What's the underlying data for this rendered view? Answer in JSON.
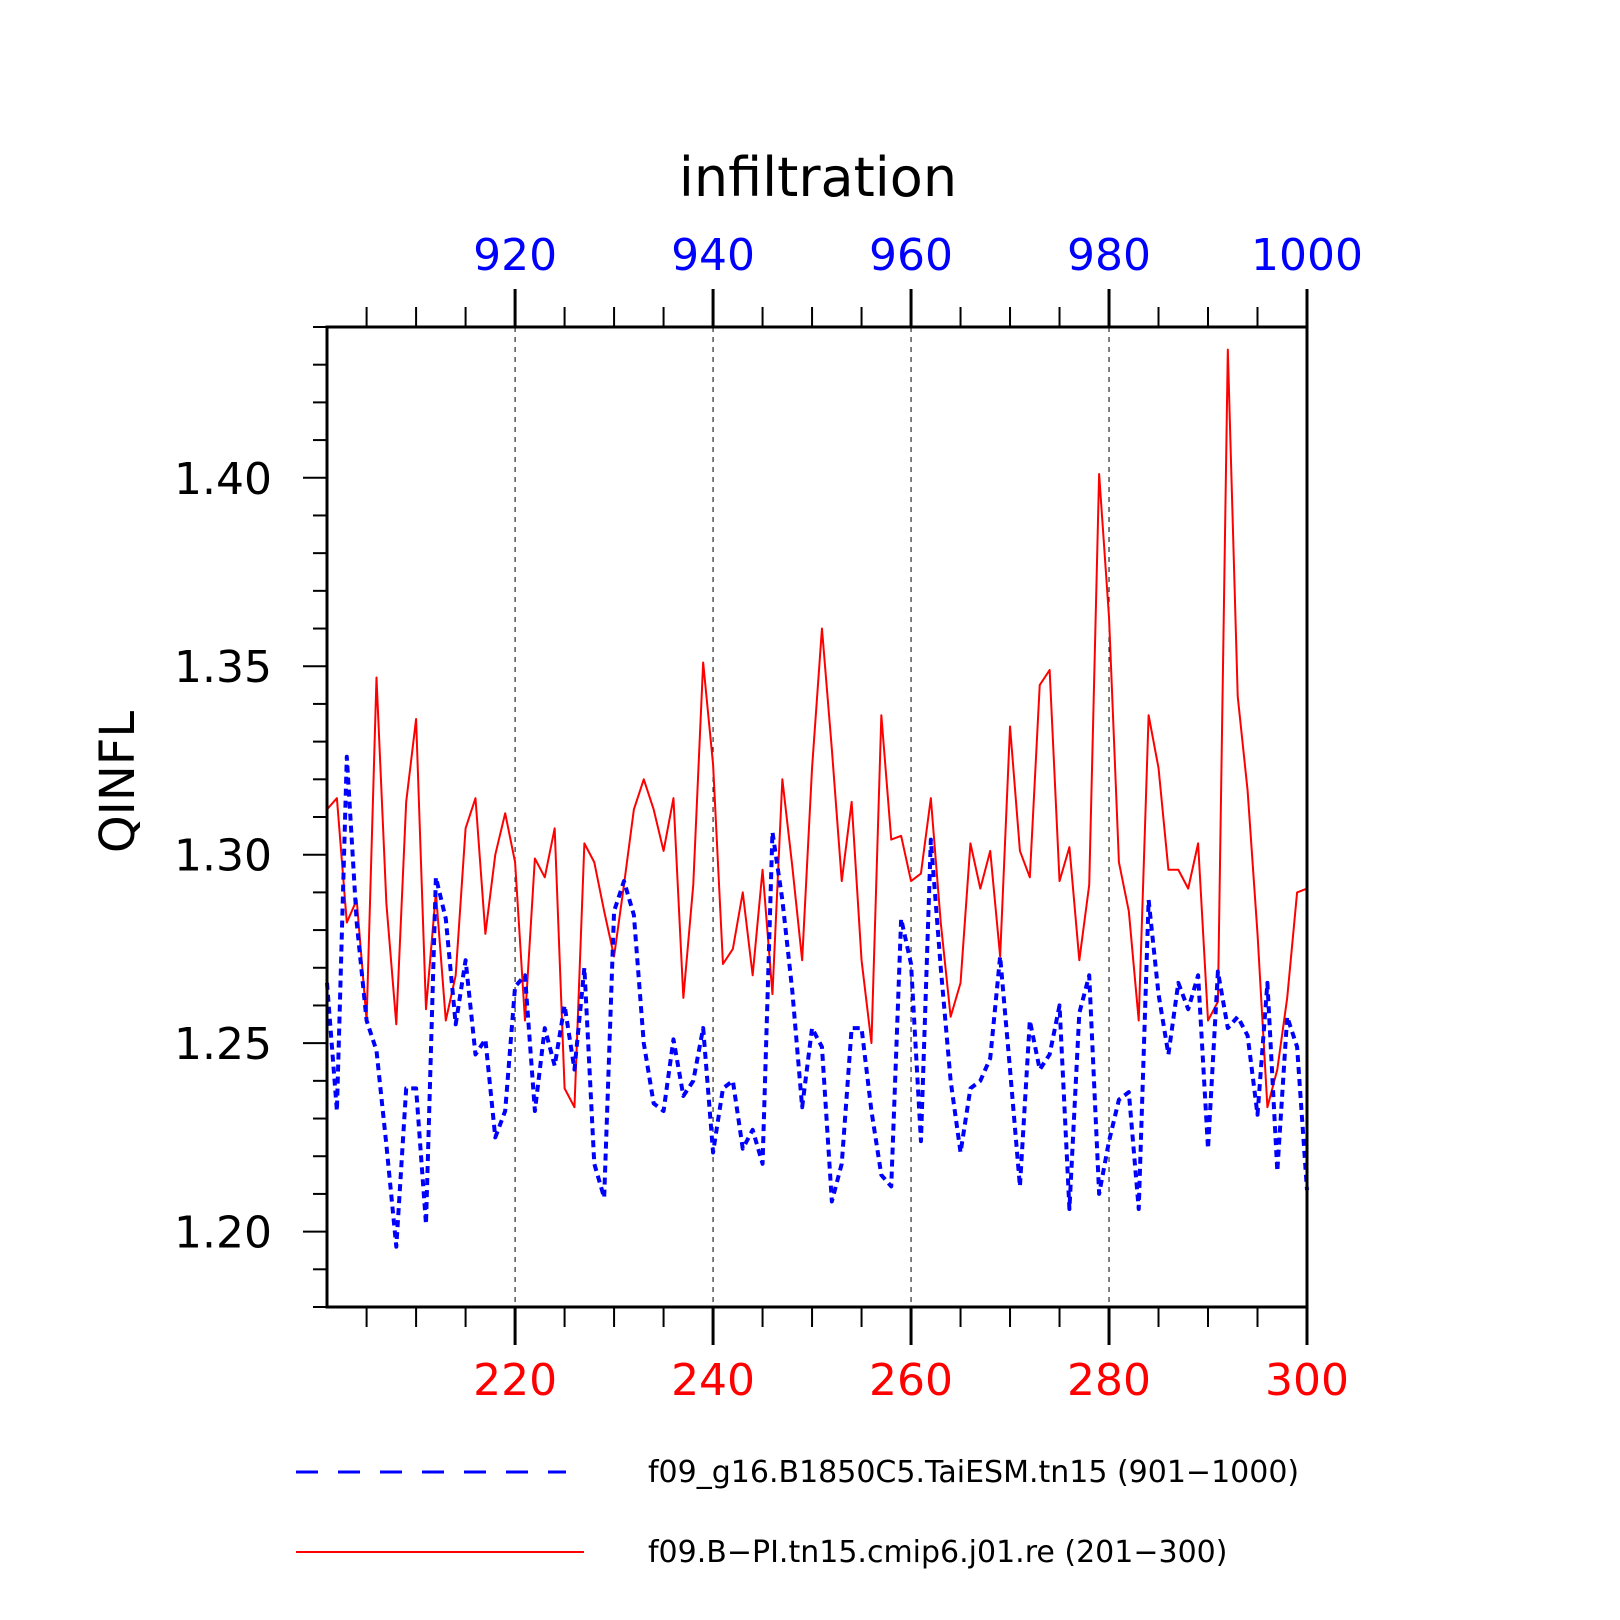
{
  "chart_data": {
    "type": "line",
    "title": "infiltration",
    "ylabel": "QINFL",
    "ylim": [
      1.18,
      1.44
    ],
    "yticks": [
      "1.20",
      "1.25",
      "1.30",
      "1.35",
      "1.40"
    ],
    "grid": "vertical dashed lines at major ticks",
    "legend_placement": "bottom",
    "x_bottom": {
      "range": [
        201,
        300
      ],
      "ticks": [
        "220",
        "240",
        "260",
        "280",
        "300"
      ],
      "color": "#ff0000"
    },
    "x_top": {
      "range": [
        901,
        1000
      ],
      "ticks": [
        "920",
        "940",
        "960",
        "980",
        "1000"
      ],
      "color": "#0000ff"
    },
    "series": [
      {
        "name": "f09_g16.B1850C5.TaiESM.tn15 (901−1000)",
        "color": "#0000ff",
        "style": "dashed",
        "x_start": 901,
        "values": [
          1.266,
          1.232,
          1.326,
          1.282,
          1.256,
          1.248,
          1.223,
          1.196,
          1.238,
          1.238,
          1.202,
          1.294,
          1.283,
          1.255,
          1.272,
          1.247,
          1.251,
          1.225,
          1.232,
          1.265,
          1.268,
          1.232,
          1.254,
          1.244,
          1.26,
          1.243,
          1.27,
          1.218,
          1.209,
          1.285,
          1.293,
          1.284,
          1.25,
          1.234,
          1.232,
          1.251,
          1.236,
          1.24,
          1.254,
          1.221,
          1.238,
          1.24,
          1.222,
          1.227,
          1.218,
          1.306,
          1.288,
          1.264,
          1.233,
          1.254,
          1.249,
          1.208,
          1.218,
          1.254,
          1.254,
          1.232,
          1.215,
          1.212,
          1.283,
          1.271,
          1.224,
          1.304,
          1.27,
          1.24,
          1.221,
          1.238,
          1.24,
          1.246,
          1.273,
          1.243,
          1.212,
          1.256,
          1.243,
          1.247,
          1.26,
          1.206,
          1.258,
          1.268,
          1.21,
          1.224,
          1.235,
          1.237,
          1.206,
          1.288,
          1.263,
          1.247,
          1.266,
          1.259,
          1.268,
          1.222,
          1.269,
          1.254,
          1.257,
          1.252,
          1.231,
          1.266,
          1.216,
          1.257,
          1.249,
          1.211
        ]
      },
      {
        "name": "f09.B−PI.tn15.cmip6.j01.re (201−300)",
        "color": "#ff0000",
        "style": "solid",
        "x_start": 201,
        "values": [
          1.312,
          1.315,
          1.282,
          1.288,
          1.256,
          1.347,
          1.287,
          1.255,
          1.314,
          1.336,
          1.259,
          1.29,
          1.256,
          1.268,
          1.307,
          1.315,
          1.279,
          1.3,
          1.311,
          1.298,
          1.256,
          1.299,
          1.294,
          1.307,
          1.238,
          1.233,
          1.303,
          1.298,
          1.285,
          1.273,
          1.292,
          1.312,
          1.32,
          1.312,
          1.301,
          1.315,
          1.262,
          1.292,
          1.351,
          1.324,
          1.271,
          1.275,
          1.29,
          1.268,
          1.296,
          1.263,
          1.32,
          1.297,
          1.272,
          1.323,
          1.36,
          1.328,
          1.293,
          1.314,
          1.272,
          1.25,
          1.337,
          1.304,
          1.305,
          1.293,
          1.295,
          1.315,
          1.282,
          1.257,
          1.266,
          1.303,
          1.291,
          1.301,
          1.273,
          1.334,
          1.301,
          1.294,
          1.345,
          1.349,
          1.293,
          1.302,
          1.272,
          1.292,
          1.401,
          1.363,
          1.298,
          1.285,
          1.256,
          1.337,
          1.323,
          1.296,
          1.296,
          1.291,
          1.303,
          1.256,
          1.261,
          1.434,
          1.342,
          1.317,
          1.279,
          1.233,
          1.243,
          1.262,
          1.29,
          1.291
        ]
      }
    ]
  }
}
